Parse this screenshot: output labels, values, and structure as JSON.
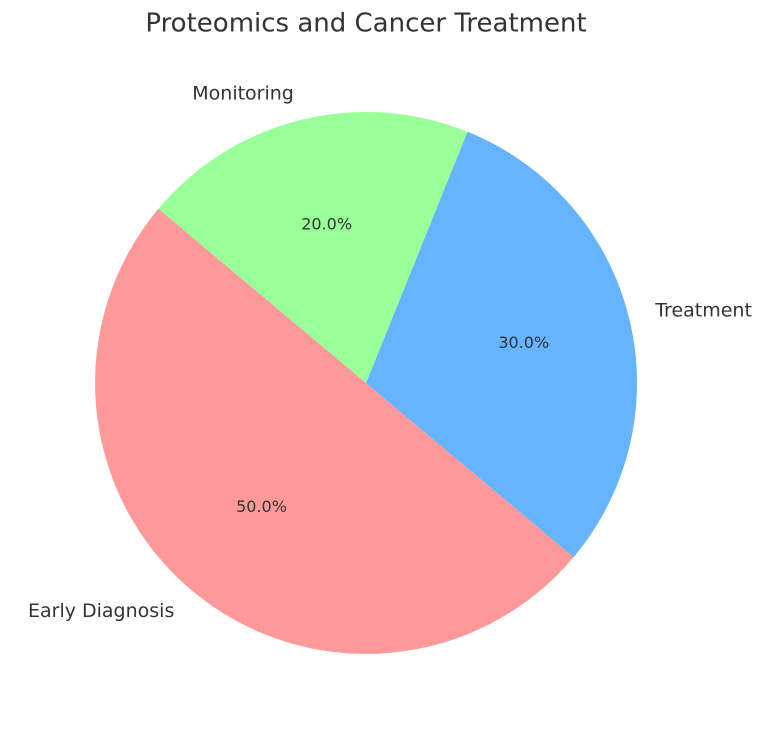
{
  "chart_data": {
    "type": "pie",
    "title": "Proteomics and Cancer Treatment",
    "categories": [
      "Early Diagnosis",
      "Treatment",
      "Monitoring"
    ],
    "values": [
      50,
      30,
      20
    ],
    "value_labels": [
      "50.0%",
      "30.0%",
      "20.0%"
    ],
    "colors": [
      "#ff9999",
      "#66b3ff",
      "#99ff99"
    ]
  }
}
